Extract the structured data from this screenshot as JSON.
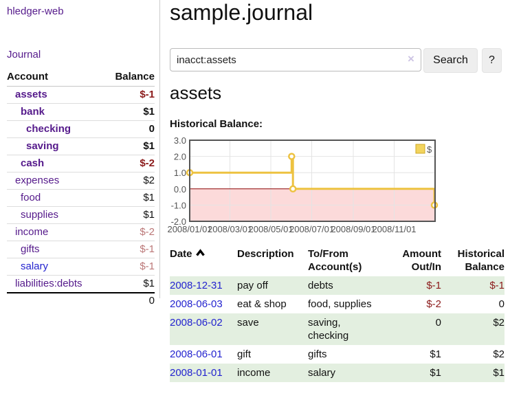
{
  "brand": "hledger-web",
  "sidebar": {
    "journal_link": "Journal",
    "accounts": {
      "header_account": "Account",
      "header_balance": "Balance",
      "rows": [
        {
          "name": "assets",
          "depth": 1,
          "balance": "$-1",
          "bold": true,
          "balance_style": "neg-strong"
        },
        {
          "name": "bank",
          "depth": 2,
          "balance": "$1",
          "bold": true,
          "balance_style": "pos"
        },
        {
          "name": "checking",
          "depth": 3,
          "balance": "0",
          "bold": true,
          "balance_style": "pos"
        },
        {
          "name": "saving",
          "depth": 3,
          "balance": "$1",
          "bold": true,
          "balance_style": "pos"
        },
        {
          "name": "cash",
          "depth": 2,
          "balance": "$-2",
          "bold": true,
          "balance_style": "neg-strong"
        },
        {
          "name": "expenses",
          "depth": 1,
          "balance": "$2",
          "bold": false,
          "balance_style": "pos"
        },
        {
          "name": "food",
          "depth": 2,
          "balance": "$1",
          "bold": false,
          "balance_style": "pos"
        },
        {
          "name": "supplies",
          "depth": 2,
          "balance": "$1",
          "bold": false,
          "balance_style": "pos"
        },
        {
          "name": "income",
          "depth": 1,
          "balance": "$-2",
          "bold": false,
          "balance_style": "neg-soft"
        },
        {
          "name": "gifts",
          "depth": 2,
          "balance": "$-1",
          "bold": false,
          "balance_style": "neg-soft"
        },
        {
          "name": "salary",
          "depth": 2,
          "balance": "$-1",
          "bold": false,
          "balance_style": "neg-soft",
          "link_color": "blue"
        },
        {
          "name": "liabilities:debts",
          "depth": 1,
          "balance": "$1",
          "bold": false,
          "balance_style": "pos"
        }
      ],
      "total": "0"
    }
  },
  "header": {
    "title": "sample.journal"
  },
  "search": {
    "value": "inacct:assets",
    "clear_label": "×",
    "search_button": "Search",
    "help_button": "?"
  },
  "account_view": {
    "heading": "assets",
    "section_label": "Historical Balance:"
  },
  "chart_data": {
    "type": "line",
    "step": true,
    "title": "Historical Balance",
    "x_type": "date",
    "xrange": [
      "2008-01-01",
      "2009-01-01"
    ],
    "ylim": [
      -2,
      3
    ],
    "yticks": [
      {
        "value": 3,
        "label": "3.0"
      },
      {
        "value": 2,
        "label": "2.0"
      },
      {
        "value": 1,
        "label": "1.0"
      },
      {
        "value": 0,
        "label": "0.0"
      },
      {
        "value": -1,
        "label": "-1.0"
      },
      {
        "value": -2,
        "label": "-2.0"
      }
    ],
    "xticks": [
      {
        "date": "2008-01-01",
        "label": "2008/01/01"
      },
      {
        "date": "2008-03-01",
        "label": "2008/03/01"
      },
      {
        "date": "2008-05-01",
        "label": "2008/05/01"
      },
      {
        "date": "2008-07-01",
        "label": "2008/07/01"
      },
      {
        "date": "2008-09-01",
        "label": "2008/09/01"
      },
      {
        "date": "2008-11-01",
        "label": "2008/11/01"
      }
    ],
    "series": [
      {
        "name": "$",
        "color": "#edc240",
        "points": [
          {
            "date": "2008-01-01",
            "value": 1
          },
          {
            "date": "2008-06-01",
            "value": 2
          },
          {
            "date": "2008-06-03",
            "value": 0
          },
          {
            "date": "2008-12-31",
            "value": -1
          }
        ]
      }
    ],
    "legend_position": "top-right",
    "grid": true,
    "negative_region_color": "#fcdada",
    "zero_line_color": "#8b0000"
  },
  "register": {
    "columns": [
      "Date",
      "Description",
      "To/From Account(s)",
      "Amount Out/In",
      "Historical Balance"
    ],
    "sort": "date-ascending",
    "rows": [
      {
        "date": "2008-12-31",
        "description": "pay off",
        "accounts": "debts",
        "amount": "$-1",
        "amount_neg": true,
        "balance": "$-1",
        "balance_neg": true
      },
      {
        "date": "2008-06-03",
        "description": "eat & shop",
        "accounts": "food, supplies",
        "amount": "$-2",
        "amount_neg": true,
        "balance": "0",
        "balance_neg": false
      },
      {
        "date": "2008-06-02",
        "description": "save",
        "accounts": "saving, checking",
        "amount": "0",
        "amount_neg": false,
        "balance": "$2",
        "balance_neg": false
      },
      {
        "date": "2008-06-01",
        "description": "gift",
        "accounts": "gifts",
        "amount": "$1",
        "amount_neg": false,
        "balance": "$2",
        "balance_neg": false
      },
      {
        "date": "2008-01-01",
        "description": "income",
        "accounts": "salary",
        "amount": "$1",
        "amount_neg": false,
        "balance": "$1",
        "balance_neg": false
      }
    ]
  },
  "colors": {
    "purple": "#551a8b",
    "blue": "#2323cf",
    "negStrong": "#8b1a1a",
    "negSoft": "#bb7777",
    "rowGreen": "#e3efe0",
    "gold": "#edc240",
    "pink": "#fcdada",
    "zero": "#8b0000"
  }
}
